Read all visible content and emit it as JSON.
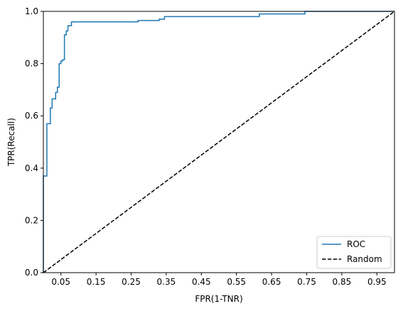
{
  "chart_data": {
    "type": "line",
    "xlabel": "FPR(1-TNR)",
    "ylabel": "TPR(Recall)",
    "xlim": [
      0,
      1
    ],
    "ylim": [
      0,
      1
    ],
    "xticks": [
      0.05,
      0.15,
      0.25,
      0.35,
      0.45,
      0.55,
      0.65,
      0.75,
      0.85,
      0.95
    ],
    "xtick_labels": [
      "0.05",
      "0.15",
      "0.25",
      "0.35",
      "0.45",
      "0.55",
      "0.65",
      "0.75",
      "0.85",
      "0.95"
    ],
    "yticks": [
      0,
      0.2,
      0.4,
      0.6,
      0.8,
      1.0
    ],
    "ytick_labels": [
      "0.0",
      "0.2",
      "0.4",
      "0.6",
      "0.8",
      "1.0"
    ],
    "grid": false,
    "legend_position": "lower-right",
    "series": [
      {
        "name": "ROC",
        "style": "solid",
        "color": "#1f77b4",
        "x": [
          0,
          0,
          0.01,
          0.01,
          0.02,
          0.02,
          0.025,
          0.025,
          0.035,
          0.035,
          0.04,
          0.04,
          0.045,
          0.045,
          0.05,
          0.05,
          0.055,
          0.055,
          0.06,
          0.06,
          0.065,
          0.065,
          0.07,
          0.07,
          0.08,
          0.08,
          0.27,
          0.27,
          0.33,
          0.33,
          0.345,
          0.345,
          0.615,
          0.615,
          0.745,
          0.745,
          1.0
        ],
        "y": [
          0,
          0.37,
          0.37,
          0.57,
          0.57,
          0.63,
          0.63,
          0.665,
          0.665,
          0.69,
          0.69,
          0.71,
          0.71,
          0.8,
          0.8,
          0.81,
          0.81,
          0.815,
          0.815,
          0.91,
          0.91,
          0.925,
          0.925,
          0.945,
          0.945,
          0.96,
          0.96,
          0.965,
          0.965,
          0.97,
          0.97,
          0.98,
          0.98,
          0.99,
          0.99,
          1.0,
          1.0
        ]
      },
      {
        "name": "Random",
        "style": "dashed",
        "color": "#000000",
        "x": [
          0,
          1
        ],
        "y": [
          0,
          1
        ]
      }
    ]
  }
}
